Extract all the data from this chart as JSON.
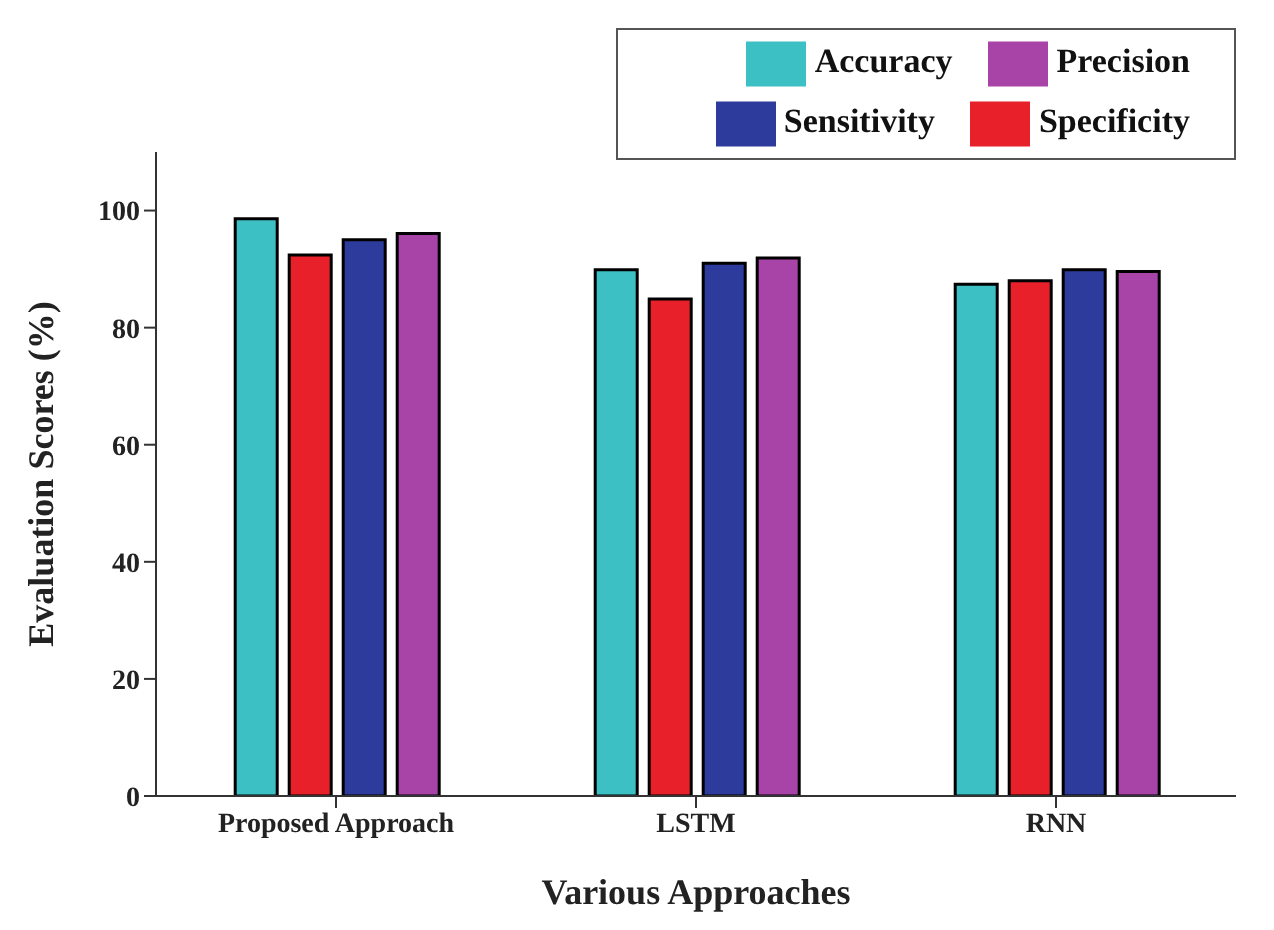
{
  "chart_data": {
    "type": "bar",
    "xlabel": "Various Approaches",
    "ylabel": "Evaluation Scores (%)",
    "categories": [
      "Proposed Approach",
      "LSTM",
      "RNN"
    ],
    "series": [
      {
        "name": "Accuracy",
        "color": "#3cc0c4",
        "values": [
          98.6,
          89.9,
          87.4
        ]
      },
      {
        "name": "Specificity",
        "color": "#e8202a",
        "values": [
          92.4,
          84.9,
          88
        ]
      },
      {
        "name": "Sensitivity",
        "color": "#2d3c9c",
        "values": [
          95,
          91,
          89.9
        ]
      },
      {
        "name": "Precision",
        "color": "#a844a8",
        "values": [
          96.1,
          91.9,
          89.6
        ]
      }
    ],
    "ylim": [
      0,
      110
    ],
    "yticks": [
      0,
      20,
      40,
      60,
      80,
      100
    ],
    "grid": false,
    "legend": "top right"
  }
}
